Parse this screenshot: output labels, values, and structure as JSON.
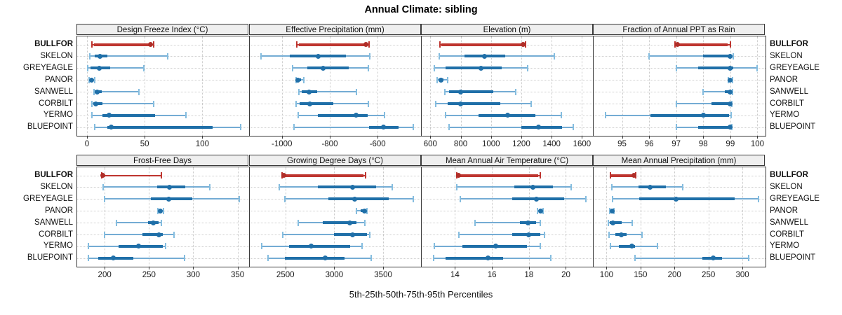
{
  "title": "Annual Climate: sibling",
  "xlabel": "5th-25th-50th-75th-95th Percentiles",
  "percentiles": [
    5,
    25,
    50,
    75,
    95
  ],
  "stations": [
    "BULLFOR",
    "SKELON",
    "GREYEAGLE",
    "PANOR",
    "SANWELL",
    "CORBILT",
    "YERMO",
    "BLUEPOINT"
  ],
  "highlight_station": "BULLFOR",
  "colors": {
    "highlight_line": "#BE352F",
    "highlight_light": "#C6574E",
    "highlight_dot": "#B02E28",
    "normal_line": "#1F6FA8",
    "normal_light": "#74ACD4",
    "normal_cap": "#85BDDF",
    "normal_dot": "#1F6FA8",
    "strip_bg": "#EFEFEF",
    "border": "#3a3a3a",
    "grid": "#c9c9c9"
  },
  "chart_data": [
    {
      "type": "dotplot-percentiles",
      "title": "Design Freeze Index (°C)",
      "xlim": [
        -8.5,
        140.5
      ],
      "ticks": [
        0,
        50,
        100
      ],
      "grid": "dotted",
      "series": [
        {
          "station": "BULLFOR",
          "values": [
            4,
            6,
            55,
            56.5,
            58
          ]
        },
        {
          "station": "SKELON",
          "values": [
            2.5,
            6.5,
            11,
            17.5,
            70
          ]
        },
        {
          "station": "GREYEAGLE",
          "values": [
            0.5,
            3,
            10.5,
            20,
            49
          ]
        },
        {
          "station": "PANOR",
          "values": [
            2,
            3,
            4,
            5.5,
            7
          ]
        },
        {
          "station": "SANWELL",
          "values": [
            6,
            7,
            9,
            13,
            45
          ]
        },
        {
          "station": "CORBILT",
          "values": [
            4.5,
            5.5,
            7.5,
            13.5,
            58
          ]
        },
        {
          "station": "YERMO",
          "values": [
            4,
            13.5,
            19,
            59,
            86
          ]
        },
        {
          "station": "BLUEPOINT",
          "values": [
            6.5,
            17.5,
            21,
            109,
            133
          ]
        }
      ]
    },
    {
      "type": "dotplot-percentiles",
      "title": "Effective Precipitation (mm)",
      "xlim": [
        -1134,
        -416
      ],
      "ticks": [
        -1000,
        -800,
        -600
      ],
      "grid": "dotted",
      "series": [
        {
          "station": "BULLFOR",
          "values": [
            -937,
            -930,
            -648,
            -642,
            -637
          ]
        },
        {
          "station": "SKELON",
          "values": [
            -1088,
            -966,
            -849,
            -732,
            -634
          ]
        },
        {
          "station": "GREYEAGLE",
          "values": [
            -956,
            -893,
            -829,
            -722,
            -639
          ]
        },
        {
          "station": "PANOR",
          "values": [
            -941,
            -938,
            -934,
            -920,
            -907
          ]
        },
        {
          "station": "SANWELL",
          "values": [
            -929,
            -917,
            -885,
            -854,
            -688
          ]
        },
        {
          "station": "CORBILT",
          "values": [
            -941,
            -927,
            -883,
            -785,
            -639
          ]
        },
        {
          "station": "YERMO",
          "values": [
            -931,
            -851,
            -690,
            -641,
            -571
          ]
        },
        {
          "station": "BLUEPOINT",
          "values": [
            -950,
            -636,
            -575,
            -514,
            -450
          ]
        }
      ]
    },
    {
      "type": "dotplot-percentiles",
      "title": "Elevation (m)",
      "xlim": [
        543,
        1677
      ],
      "ticks": [
        600,
        800,
        1000,
        1200,
        1400,
        1600
      ],
      "grid": "dotted",
      "series": [
        {
          "station": "BULLFOR",
          "values": [
            662,
            672,
            1213,
            1222,
            1230
          ]
        },
        {
          "station": "SKELON",
          "values": [
            660,
            825,
            958,
            1095,
            1420
          ]
        },
        {
          "station": "GREYEAGLE",
          "values": [
            625,
            700,
            935,
            1070,
            1240
          ]
        },
        {
          "station": "PANOR",
          "values": [
            645,
            652,
            669,
            686,
            715
          ]
        },
        {
          "station": "SANWELL",
          "values": [
            695,
            725,
            800,
            1015,
            1165
          ]
        },
        {
          "station": "CORBILT",
          "values": [
            635,
            716,
            798,
            1063,
            1265
          ]
        },
        {
          "station": "YERMO",
          "values": [
            700,
            917,
            1109,
            1295,
            1465
          ]
        },
        {
          "station": "BLUEPOINT",
          "values": [
            725,
            1202,
            1315,
            1470,
            1542
          ]
        }
      ]
    },
    {
      "type": "dotplot-percentiles",
      "title": "Fraction of Annual PPT as Rain",
      "xlim": [
        93.95,
        100.3
      ],
      "ticks": [
        95,
        96,
        97,
        98,
        99,
        100
      ],
      "grid": "dotted",
      "series": [
        {
          "station": "BULLFOR",
          "values": [
            96.95,
            97,
            97.05,
            98.9,
            99
          ]
        },
        {
          "station": "SKELON",
          "values": [
            96,
            98,
            99,
            99.05,
            99.1
          ]
        },
        {
          "station": "GREYEAGLE",
          "values": [
            97,
            97.8,
            99,
            99.1,
            100
          ]
        },
        {
          "station": "PANOR",
          "values": [
            98.92,
            98.96,
            99,
            99.04,
            99.08
          ]
        },
        {
          "station": "SANWELL",
          "values": [
            98,
            98.8,
            99,
            99.04,
            99.08
          ]
        },
        {
          "station": "CORBILT",
          "values": [
            97,
            98.3,
            98.98,
            99.02,
            99.06
          ]
        },
        {
          "station": "YERMO",
          "values": [
            94.4,
            96.05,
            98,
            98.95,
            99.02
          ]
        },
        {
          "station": "BLUEPOINT",
          "values": [
            97,
            97.8,
            98.98,
            99.02,
            99.06
          ]
        }
      ]
    },
    {
      "type": "dotplot-percentiles",
      "title": "Frost-Free Days",
      "xlim": [
        169,
        363
      ],
      "ticks": [
        200,
        250,
        300,
        350
      ],
      "grid": "dotted",
      "series": [
        {
          "station": "BULLFOR",
          "values": [
            196.5,
            197.5,
            198,
            199.5,
            264
          ]
        },
        {
          "station": "SKELON",
          "values": [
            198,
            259,
            273,
            291,
            319
          ]
        },
        {
          "station": "GREYEAGLE",
          "values": [
            200,
            252,
            272,
            299,
            352
          ]
        },
        {
          "station": "PANOR",
          "values": [
            260,
            262,
            263,
            264.5,
            266
          ]
        },
        {
          "station": "SANWELL",
          "values": [
            213,
            249,
            255,
            261,
            264
          ]
        },
        {
          "station": "CORBILT",
          "values": [
            200,
            243,
            261,
            266,
            278
          ]
        },
        {
          "station": "YERMO",
          "values": [
            182,
            216,
            238,
            266,
            269
          ]
        },
        {
          "station": "BLUEPOINT",
          "values": [
            182,
            193,
            210,
            232,
            290
          ]
        }
      ]
    },
    {
      "type": "dotplot-percentiles",
      "title": "Growing Degree Days (°C)",
      "xlim": [
        2136,
        3894
      ],
      "ticks": [
        2500,
        3000,
        3500
      ],
      "grid": "dotted",
      "series": [
        {
          "station": "BULLFOR",
          "values": [
            2465,
            2475,
            2485,
            3300,
            3320
          ]
        },
        {
          "station": "SKELON",
          "values": [
            2440,
            2835,
            3190,
            3430,
            3595
          ]
        },
        {
          "station": "GREYEAGLE",
          "values": [
            2495,
            2940,
            3210,
            3560,
            3810
          ]
        },
        {
          "station": "PANOR",
          "values": [
            3225,
            3270,
            3310,
            3325,
            3335
          ]
        },
        {
          "station": "SANWELL",
          "values": [
            2630,
            2880,
            3155,
            3230,
            3310
          ]
        },
        {
          "station": "CORBILT",
          "values": [
            2475,
            3000,
            3190,
            3335,
            3360
          ]
        },
        {
          "station": "YERMO",
          "values": [
            2255,
            2535,
            2765,
            3165,
            3285
          ]
        },
        {
          "station": "BLUEPOINT",
          "values": [
            2320,
            2495,
            2910,
            3105,
            3380
          ]
        }
      ]
    },
    {
      "type": "dotplot-percentiles",
      "title": "Mean Annual Air Temperature (°C)",
      "xlim": [
        12.2,
        21.5
      ],
      "ticks": [
        14,
        16,
        18,
        20
      ],
      "grid": "dotted",
      "series": [
        {
          "station": "BULLFOR",
          "values": [
            14.1,
            14.15,
            14.2,
            18.5,
            18.6
          ]
        },
        {
          "station": "SKELON",
          "values": [
            14.1,
            17.2,
            18.2,
            19.3,
            20.3
          ]
        },
        {
          "station": "GREYEAGLE",
          "values": [
            14.3,
            17.1,
            18.4,
            19.9,
            21.1
          ]
        },
        {
          "station": "PANOR",
          "values": [
            18.45,
            18.55,
            18.65,
            18.72,
            18.78
          ]
        },
        {
          "station": "SANWELL",
          "values": [
            15.1,
            17.5,
            17.95,
            18.4,
            18.6
          ]
        },
        {
          "station": "CORBILT",
          "values": [
            14.2,
            17.1,
            18.0,
            18.6,
            18.85
          ]
        },
        {
          "station": "YERMO",
          "values": [
            12.9,
            14.4,
            16.2,
            17.9,
            18.6
          ]
        },
        {
          "station": "BLUEPOINT",
          "values": [
            12.85,
            13.5,
            15.8,
            16.6,
            19.2
          ]
        }
      ]
    },
    {
      "type": "dotplot-percentiles",
      "title": "Mean Annual Precipitation (mm)",
      "xlim": [
        81,
        334
      ],
      "ticks": [
        100,
        150,
        200,
        250,
        300
      ],
      "grid": "dotted",
      "series": [
        {
          "station": "BULLFOR",
          "values": [
            106,
            107,
            140,
            141.5,
            143
          ]
        },
        {
          "station": "SKELON",
          "values": [
            107.5,
            147,
            164,
            187,
            212.5
          ]
        },
        {
          "station": "GREYEAGLE",
          "values": [
            109,
            148,
            202,
            289,
            324
          ]
        },
        {
          "station": "PANOR",
          "values": [
            105,
            106.5,
            108,
            109.5,
            111
          ]
        },
        {
          "station": "SANWELL",
          "values": [
            103,
            105,
            109,
            122,
            138
          ]
        },
        {
          "station": "CORBILT",
          "values": [
            104,
            113,
            122,
            130,
            152
          ]
        },
        {
          "station": "YERMO",
          "values": [
            106,
            118,
            137,
            142,
            175
          ]
        },
        {
          "station": "BLUEPOINT",
          "values": [
            142,
            241,
            257,
            270,
            309
          ]
        }
      ]
    }
  ]
}
